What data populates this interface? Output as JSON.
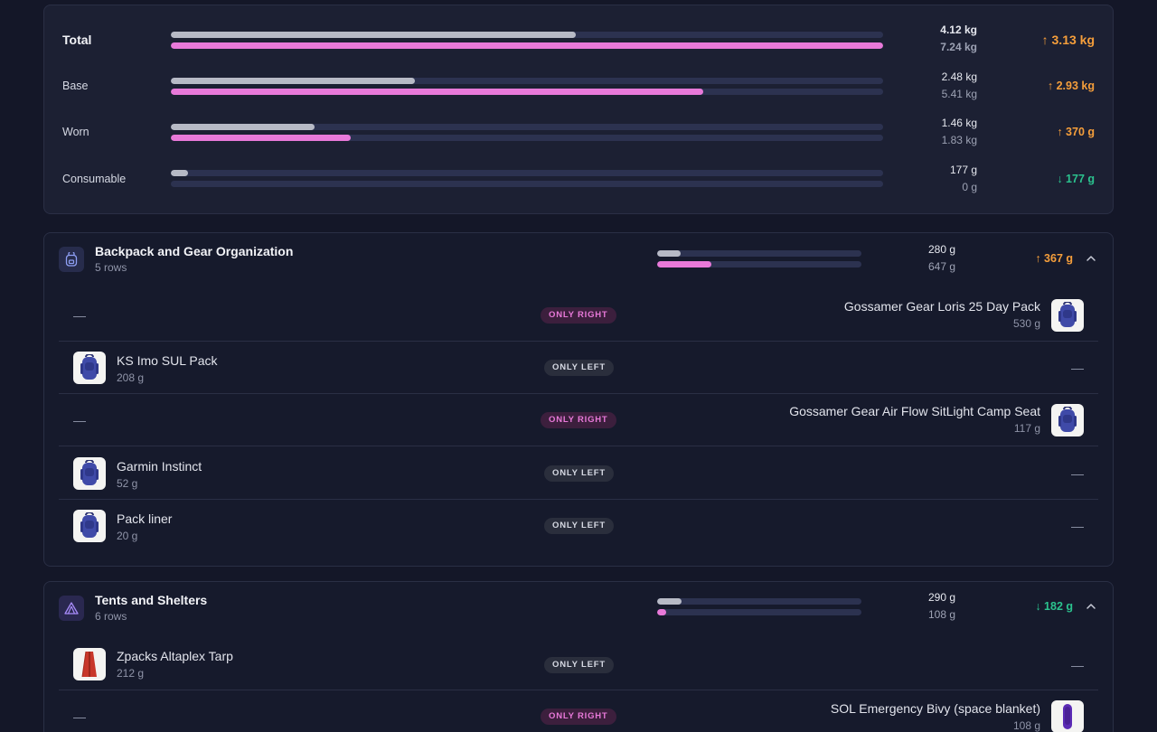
{
  "summary": {
    "rows": [
      {
        "label": "Total",
        "left": "4.12 kg",
        "right": "7.24 kg",
        "left_frac": 0.568,
        "right_frac": 1.0,
        "delta": "↑ 3.13 kg",
        "dir": "up"
      },
      {
        "label": "Base",
        "left": "2.48 kg",
        "right": "5.41 kg",
        "left_frac": 0.343,
        "right_frac": 0.748,
        "delta": "↑ 2.93 kg",
        "dir": "up"
      },
      {
        "label": "Worn",
        "left": "1.46 kg",
        "right": "1.83 kg",
        "left_frac": 0.202,
        "right_frac": 0.253,
        "delta": "↑ 370 g",
        "dir": "up"
      },
      {
        "label": "Consumable",
        "left": "177 g",
        "right": "0 g",
        "left_frac": 0.024,
        "right_frac": 0.0,
        "delta": "↓ 177 g",
        "dir": "down"
      }
    ]
  },
  "categories": [
    {
      "title": "Backpack and Gear Organization",
      "rows_label": "5 rows",
      "left": "280 g",
      "right": "647 g",
      "left_frac": 0.115,
      "right_frac": 0.265,
      "delta": "↑ 367 g",
      "dir": "up",
      "icon": "backpack-icon",
      "items": [
        {
          "side": "right",
          "badge": "ONLY RIGHT",
          "name": "Gossamer Gear Loris 25 Day Pack",
          "weight": "530 g",
          "thumb": "backpack-thumb"
        },
        {
          "side": "left",
          "badge": "ONLY LEFT",
          "name": "KS Imo SUL Pack",
          "weight": "208 g",
          "thumb": "backpack-thumb"
        },
        {
          "side": "right",
          "badge": "ONLY RIGHT",
          "name": "Gossamer Gear Air Flow SitLight Camp Seat",
          "weight": "117 g",
          "thumb": "backpack-thumb"
        },
        {
          "side": "left",
          "badge": "ONLY LEFT",
          "name": "Garmin Instinct",
          "weight": "52 g",
          "thumb": "backpack-thumb"
        },
        {
          "side": "left",
          "badge": "ONLY LEFT",
          "name": "Pack liner",
          "weight": "20 g",
          "thumb": "backpack-thumb"
        }
      ]
    },
    {
      "title": "Tents and Shelters",
      "rows_label": "6 rows",
      "left": "290 g",
      "right": "108 g",
      "left_frac": 0.12,
      "right_frac": 0.044,
      "delta": "↓ 182 g",
      "dir": "down",
      "icon": "tent-icon",
      "items": [
        {
          "side": "left",
          "badge": "ONLY LEFT",
          "name": "Zpacks Altaplex Tarp",
          "weight": "212 g",
          "thumb": "tarp-thumb"
        },
        {
          "side": "right",
          "badge": "ONLY RIGHT",
          "name": "SOL Emergency Bivy (space blanket)",
          "weight": "108 g",
          "thumb": "bivy-thumb"
        }
      ]
    }
  ],
  "placeholder_dash": "—",
  "colors": {
    "left_bar": "#b7bac6",
    "right_bar": "#e879d9",
    "increase": "#f59e3b",
    "decrease": "#2bc28e"
  }
}
